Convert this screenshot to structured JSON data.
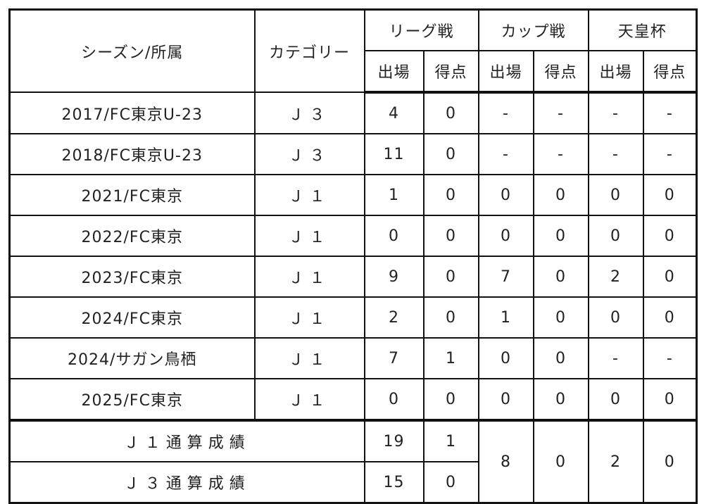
{
  "table": {
    "header": {
      "season": "シーズン/所属",
      "category": "カテゴリー",
      "groups": [
        "リーグ戦",
        "カップ戦",
        "天皇杯"
      ],
      "subheaders": [
        "出場",
        "得点",
        "出場",
        "得点",
        "出場",
        "得点"
      ]
    },
    "rows": [
      [
        "2017/FC東京U-23",
        "Ｊ３",
        "4",
        "0",
        "-",
        "-",
        "-",
        "-"
      ],
      [
        "2018/FC東京U-23",
        "Ｊ３",
        "11",
        "0",
        "-",
        "-",
        "-",
        "-"
      ],
      [
        "2021/FC東京",
        "Ｊ１",
        "1",
        "0",
        "0",
        "0",
        "0",
        "0"
      ],
      [
        "2022/FC東京",
        "Ｊ１",
        "0",
        "0",
        "0",
        "0",
        "0",
        "0"
      ],
      [
        "2023/FC東京",
        "Ｊ１",
        "9",
        "0",
        "7",
        "0",
        "2",
        "0"
      ],
      [
        "2024/FC東京",
        "Ｊ１",
        "2",
        "0",
        "1",
        "0",
        "0",
        "0"
      ],
      [
        "2024/サガン鳥栖",
        "Ｊ１",
        "7",
        "1",
        "0",
        "0",
        "-",
        "-"
      ],
      [
        "2025/FC東京",
        "Ｊ１",
        "0",
        "0",
        "0",
        "0",
        "0",
        "0"
      ]
    ],
    "totals": {
      "rows": [
        {
          "label": "Ｊ１通算成績",
          "league": [
            "19",
            "1"
          ]
        },
        {
          "label": "Ｊ３通算成績",
          "league": [
            "15",
            "0"
          ]
        }
      ],
      "combined": [
        "8",
        "0",
        "2",
        "0"
      ]
    }
  }
}
